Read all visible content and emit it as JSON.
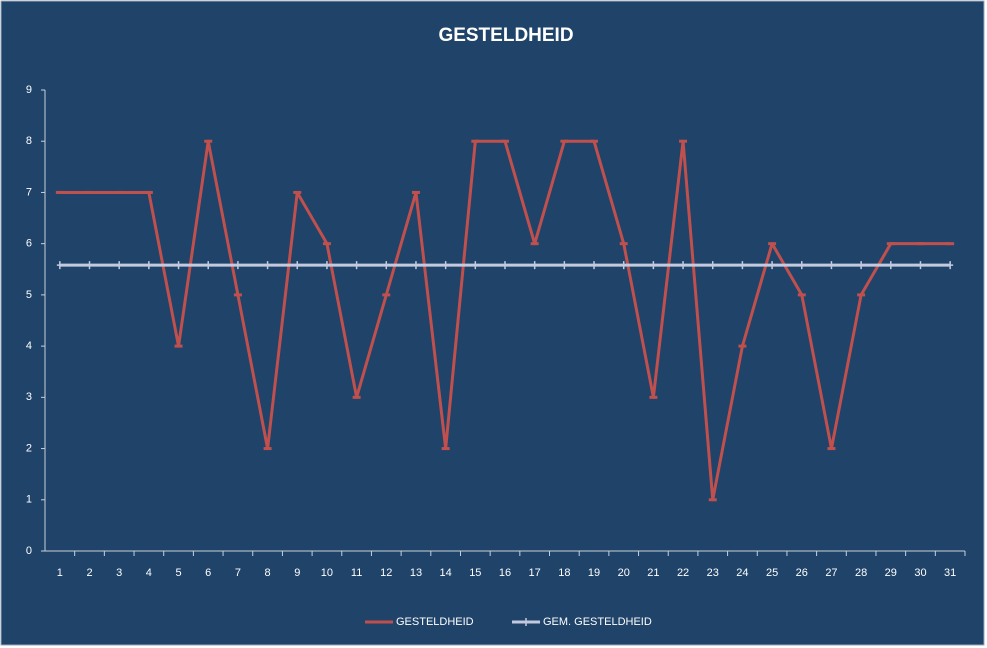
{
  "chart_data": {
    "type": "line",
    "title": "GESTELDHEID",
    "categories": [
      "1",
      "2",
      "3",
      "4",
      "5",
      "6",
      "7",
      "8",
      "9",
      "10",
      "11",
      "12",
      "13",
      "14",
      "15",
      "16",
      "17",
      "18",
      "19",
      "20",
      "21",
      "22",
      "23",
      "24",
      "25",
      "26",
      "27",
      "28",
      "29",
      "30",
      "31"
    ],
    "series": [
      {
        "name": "GESTELDHEID",
        "color": "#c0504d",
        "values": [
          7,
          7,
          7,
          7,
          4,
          8,
          5,
          2,
          7,
          6,
          3,
          5,
          7,
          2,
          8,
          8,
          6,
          8,
          8,
          6,
          3,
          8,
          1,
          4,
          6,
          5,
          2,
          5,
          6,
          6,
          6
        ]
      },
      {
        "name": "GEM. GESTELDHEID",
        "color": "#c3cae0",
        "values": [
          5.58,
          5.58,
          5.58,
          5.58,
          5.58,
          5.58,
          5.58,
          5.58,
          5.58,
          5.58,
          5.58,
          5.58,
          5.58,
          5.58,
          5.58,
          5.58,
          5.58,
          5.58,
          5.58,
          5.58,
          5.58,
          5.58,
          5.58,
          5.58,
          5.58,
          5.58,
          5.58,
          5.58,
          5.58,
          5.58,
          5.58
        ]
      }
    ],
    "ylim": [
      0,
      9
    ],
    "yticks": [
      0,
      1,
      2,
      3,
      4,
      5,
      6,
      7,
      8,
      9
    ],
    "grid": false,
    "legend": "bottom"
  }
}
